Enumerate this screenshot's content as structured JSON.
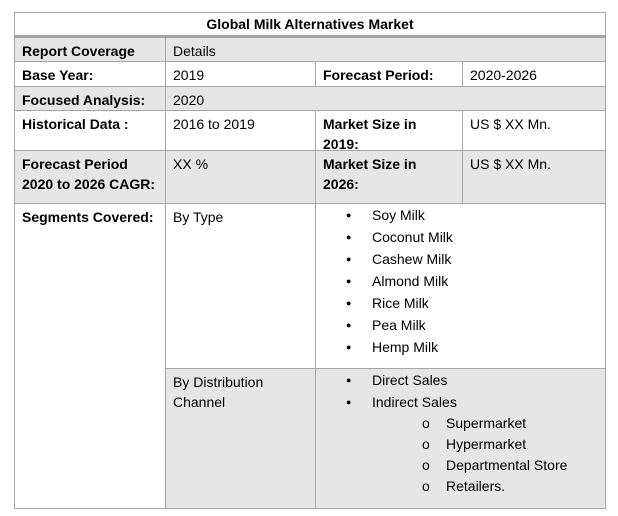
{
  "title": "Global Milk Alternatives Market",
  "rows": {
    "report_coverage": {
      "label": "Report Coverage",
      "value": "Details"
    },
    "base_year": {
      "label": "Base Year:",
      "value": "2019",
      "label2": "Forecast Period:",
      "value2": "2020-2026"
    },
    "focused": {
      "label": "Focused Analysis:",
      "value": "2020"
    },
    "historical": {
      "label": "Historical Data :",
      "value": "2016 to 2019",
      "label2": "Market Size in 2019:",
      "value2": "US $ XX Mn."
    },
    "forecast": {
      "label": "Forecast Period 2020 to 2026 CAGR:",
      "value": "XX %",
      "label2": "Market Size in 2026:",
      "value2": "US $ XX Mn."
    }
  },
  "segments": {
    "label": "Segments Covered:",
    "by_type": {
      "label": "By Type",
      "items": [
        "Soy Milk",
        "Coconut Milk",
        "Cashew Milk",
        "Almond Milk",
        "Rice Milk",
        "Pea Milk",
        "Hemp Milk"
      ]
    },
    "by_channel": {
      "label": "By Distribution Channel",
      "items": [
        "Direct Sales",
        "Indirect Sales"
      ],
      "sub_items": [
        "Supermarket",
        "Hypermarket",
        "Departmental Store",
        "Retailers."
      ]
    }
  }
}
